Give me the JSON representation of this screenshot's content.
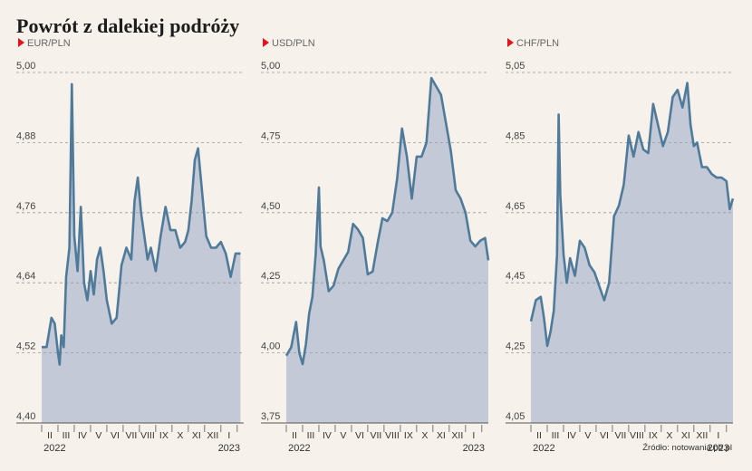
{
  "title": "Powrót z dalekiej podróży",
  "source": "Źródło: notowania.pb.pl",
  "colors": {
    "line": "#4f7a9a",
    "area": "#c3c9d6",
    "marker": "#e3151c",
    "grid": "#9a9a9a",
    "background": "#f6f1ea"
  },
  "chart_data": [
    {
      "type": "area",
      "title": "EUR/PLN",
      "ylim": [
        4.4,
        5.0
      ],
      "yticks": [
        "4,40",
        "4,52",
        "4,64",
        "4,76",
        "4,88",
        "5,00"
      ],
      "xticks": [
        "II",
        "III",
        "IV",
        "V",
        "VI",
        "VII",
        "VIII",
        "IX",
        "X",
        "XI",
        "XII",
        "I"
      ],
      "xyear_start": "2022",
      "xyear_end": "2023",
      "grid": true,
      "series": [
        {
          "x": [
            0,
            0.3,
            0.6,
            0.8,
            1.0,
            1.1,
            1.2,
            1.35,
            1.5,
            1.7,
            1.85,
            2.0,
            2.2,
            2.4,
            2.6,
            2.8,
            3.0,
            3.2,
            3.4,
            3.6,
            3.8,
            4.0,
            4.3,
            4.6,
            4.9,
            5.2,
            5.5,
            5.7,
            5.9,
            6.1,
            6.3,
            6.5,
            6.7,
            7.0,
            7.3,
            7.6,
            7.9,
            8.2,
            8.5,
            8.8,
            9.0,
            9.2,
            9.4,
            9.6,
            9.8,
            10.1,
            10.4,
            10.7,
            11.0,
            11.3,
            11.6,
            11.9,
            12.2
          ],
          "values": [
            4.53,
            4.53,
            4.58,
            4.57,
            4.52,
            4.5,
            4.55,
            4.53,
            4.65,
            4.7,
            4.98,
            4.72,
            4.66,
            4.77,
            4.64,
            4.61,
            4.66,
            4.62,
            4.68,
            4.7,
            4.66,
            4.61,
            4.57,
            4.58,
            4.67,
            4.7,
            4.68,
            4.78,
            4.82,
            4.76,
            4.72,
            4.68,
            4.7,
            4.66,
            4.72,
            4.77,
            4.73,
            4.73,
            4.7,
            4.71,
            4.73,
            4.78,
            4.85,
            4.87,
            4.81,
            4.72,
            4.7,
            4.7,
            4.71,
            4.69,
            4.65,
            4.69,
            4.69
          ]
        }
      ]
    },
    {
      "type": "area",
      "title": "USD/PLN",
      "ylim": [
        3.75,
        5.0
      ],
      "yticks": [
        "3,75",
        "4,00",
        "4,25",
        "4,50",
        "4,75",
        "5,00"
      ],
      "xticks": [
        "II",
        "III",
        "IV",
        "V",
        "VI",
        "VII",
        "VIII",
        "IX",
        "X",
        "XI",
        "XII",
        "I"
      ],
      "xyear_start": "2022",
      "xyear_end": "2023",
      "grid": true,
      "series": [
        {
          "x": [
            0,
            0.3,
            0.6,
            0.8,
            1.0,
            1.2,
            1.4,
            1.6,
            1.8,
            2.0,
            2.1,
            2.3,
            2.6,
            2.9,
            3.2,
            3.5,
            3.8,
            4.1,
            4.4,
            4.7,
            5.0,
            5.3,
            5.6,
            5.9,
            6.2,
            6.5,
            6.8,
            7.1,
            7.4,
            7.7,
            8.0,
            8.3,
            8.6,
            8.9,
            9.2,
            9.5,
            9.8,
            10.1,
            10.4,
            10.7,
            11.0,
            11.3,
            11.6,
            11.9,
            12.2,
            12.4
          ],
          "values": [
            3.99,
            4.02,
            4.11,
            4.0,
            3.96,
            4.03,
            4.14,
            4.2,
            4.35,
            4.59,
            4.38,
            4.33,
            4.22,
            4.24,
            4.3,
            4.33,
            4.36,
            4.46,
            4.44,
            4.41,
            4.28,
            4.29,
            4.39,
            4.48,
            4.47,
            4.5,
            4.62,
            4.8,
            4.7,
            4.55,
            4.7,
            4.7,
            4.75,
            4.98,
            4.95,
            4.92,
            4.82,
            4.72,
            4.58,
            4.55,
            4.5,
            4.4,
            4.38,
            4.4,
            4.41,
            4.33
          ]
        }
      ]
    },
    {
      "type": "area",
      "title": "CHF/PLN",
      "ylim": [
        4.05,
        5.05
      ],
      "yticks": [
        "4,05",
        "4,25",
        "4,45",
        "4,65",
        "4,85",
        "5,05"
      ],
      "xticks": [
        "II",
        "III",
        "IV",
        "V",
        "VI",
        "VII",
        "VIII",
        "IX",
        "X",
        "XI",
        "XII",
        "I"
      ],
      "xyear_start": "2022",
      "xyear_end": "2023",
      "grid": true,
      "series": [
        {
          "x": [
            0,
            0.3,
            0.6,
            0.8,
            1.0,
            1.2,
            1.4,
            1.6,
            1.7,
            1.8,
            2.0,
            2.2,
            2.4,
            2.7,
            3.0,
            3.3,
            3.6,
            3.9,
            4.2,
            4.5,
            4.8,
            5.1,
            5.4,
            5.7,
            6.0,
            6.3,
            6.6,
            6.9,
            7.2,
            7.5,
            7.8,
            8.1,
            8.4,
            8.7,
            9.0,
            9.3,
            9.6,
            9.8,
            10.0,
            10.2,
            10.5,
            10.8,
            11.1,
            11.4,
            11.7,
            12.0,
            12.2,
            12.4
          ],
          "values": [
            4.34,
            4.4,
            4.41,
            4.35,
            4.27,
            4.31,
            4.37,
            4.53,
            4.93,
            4.7,
            4.53,
            4.45,
            4.52,
            4.47,
            4.57,
            4.55,
            4.5,
            4.48,
            4.44,
            4.4,
            4.45,
            4.64,
            4.67,
            4.73,
            4.87,
            4.81,
            4.88,
            4.83,
            4.82,
            4.96,
            4.9,
            4.84,
            4.88,
            4.98,
            5.0,
            4.95,
            5.02,
            4.9,
            4.84,
            4.85,
            4.78,
            4.78,
            4.76,
            4.75,
            4.75,
            4.74,
            4.66,
            4.69
          ]
        }
      ]
    }
  ]
}
